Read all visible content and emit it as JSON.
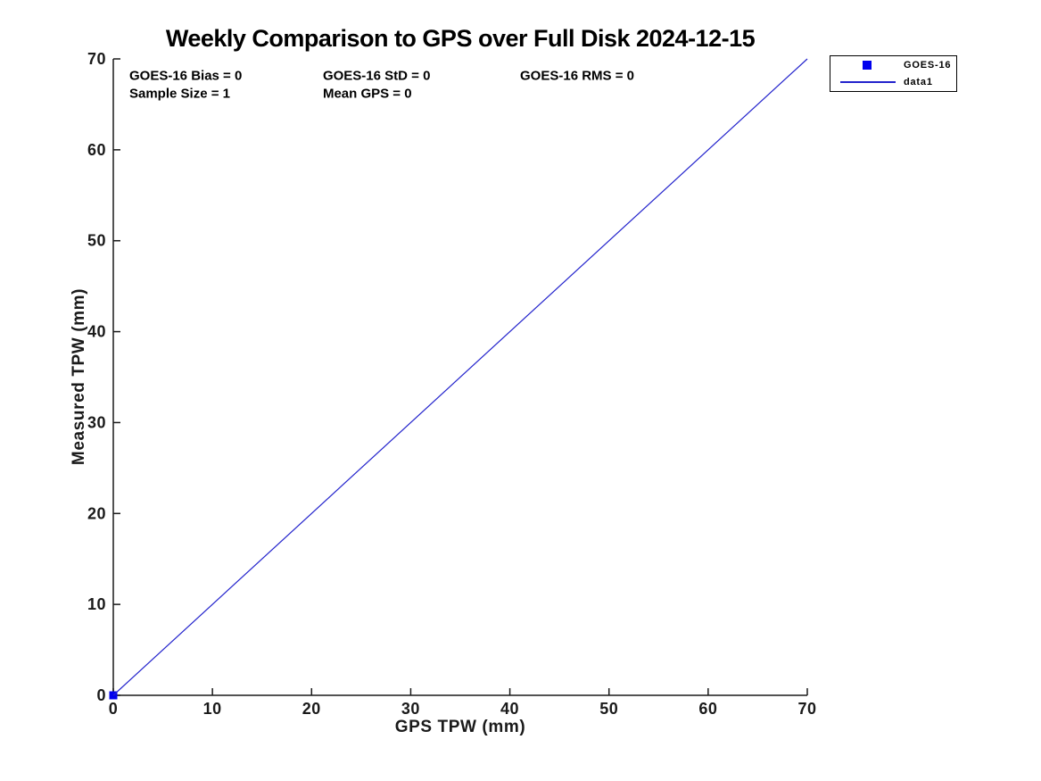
{
  "chart_data": {
    "type": "line",
    "title": "Weekly Comparison to GPS over Full Disk 2024-12-15",
    "xlabel": "GPS TPW (mm)",
    "ylabel": "Measured TPW (mm)",
    "xlim": [
      0,
      70
    ],
    "ylim": [
      0,
      70
    ],
    "xticks": [
      0,
      10,
      20,
      30,
      40,
      50,
      60,
      70
    ],
    "yticks": [
      0,
      10,
      20,
      30,
      40,
      50,
      60,
      70
    ],
    "grid": false,
    "axis_color": "#1a1a1a",
    "series": [
      {
        "name": "GOES-16",
        "type": "scatter",
        "marker": "square",
        "color": "#0000ee",
        "points": [
          [
            0,
            0
          ]
        ]
      },
      {
        "name": "data1",
        "type": "line",
        "color": "#2222cc",
        "points": [
          [
            0,
            0
          ],
          [
            70,
            70
          ]
        ]
      }
    ],
    "legend": {
      "position": "outside-top-right",
      "entries": [
        {
          "label": "GOES-16",
          "glyph": "square-marker"
        },
        {
          "label": "data1",
          "glyph": "line"
        }
      ]
    },
    "annotations": [
      {
        "text": "GOES-16 Bias = 0",
        "x": 1.62,
        "y": 68.1
      },
      {
        "text": "GOES-16 StD = 0",
        "x": 21.14,
        "y": 68.1
      },
      {
        "text": "GOES-16 RMS = 0",
        "x": 41.03,
        "y": 68.1
      },
      {
        "text": "Sample Size = 1",
        "x": 1.62,
        "y": 66.17
      },
      {
        "text": "Mean GPS = 0",
        "x": 21.14,
        "y": 66.17
      }
    ]
  }
}
